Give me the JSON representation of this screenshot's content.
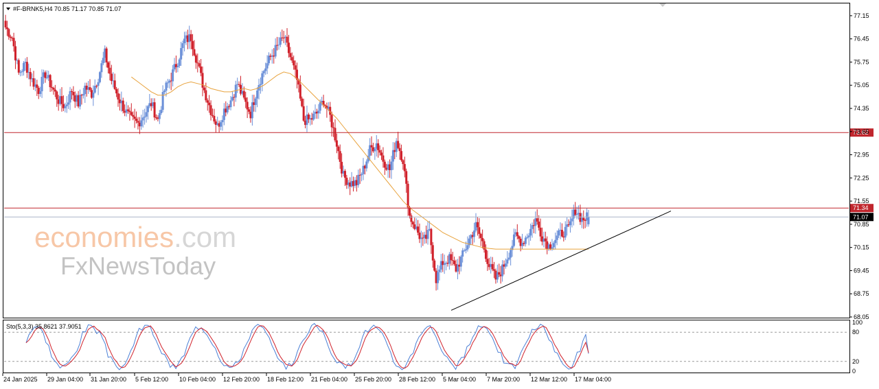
{
  "header": {
    "symbol_line": "#F-BRNK5,H4  70.85 71.17 70.85 71.07",
    "stoch_label": "Sto(5,3,3) 35.8621 37.9051"
  },
  "watermark": {
    "brand_main": "economies",
    "brand_suffix": ".com",
    "brand_second": "FxNewsToday"
  },
  "colors": {
    "bull": "#6a8fd8",
    "bear": "#d0202a",
    "ma": "#e8a23c",
    "level": "#c0262d",
    "trendline": "#000000",
    "price_line": "#aab4c8",
    "stoch_main": "#4a7fd6",
    "stoch_signal": "#d0202a"
  },
  "chart_data": [
    {
      "type": "candlestick",
      "symbol": "#F-BRNK5",
      "timeframe": "H4",
      "ohlc_last": {
        "open": 70.85,
        "high": 71.17,
        "low": 70.85,
        "close": 71.07
      },
      "ylim": [
        68.05,
        77.5
      ],
      "y_ticks": [
        77.15,
        76.45,
        75.75,
        75.05,
        74.35,
        73.65,
        72.95,
        72.25,
        71.55,
        70.85,
        70.15,
        69.45,
        68.75,
        68.05
      ],
      "x_tick_labels": [
        "24 Jan 2025",
        "29 Jan 04:00",
        "31 Jan 20:00",
        "5 Feb 12:00",
        "10 Feb 04:00",
        "12 Feb 20:00",
        "18 Feb 12:00",
        "21 Feb 04:00",
        "25 Feb 20:00",
        "28 Feb 12:00",
        "5 Mar 04:00",
        "7 Mar 20:00",
        "12 Mar 12:00",
        "17 Mar 04:00"
      ],
      "levels": [
        {
          "price": 73.62,
          "label": "73.62"
        },
        {
          "price": 71.34,
          "label": "71.34"
        }
      ],
      "current_price": {
        "price": 71.07,
        "label": "71.07"
      },
      "trendline": {
        "start_price": 68.25,
        "end_price": 71.25
      },
      "close_path": [
        76.8,
        76.5,
        75.4,
        75.7,
        75.2,
        74.9,
        75.4,
        75.0,
        74.6,
        74.4,
        74.9,
        74.5,
        75.0,
        74.8,
        75.3,
        76.0,
        75.2,
        74.7,
        74.3,
        74.0,
        73.9,
        74.2,
        74.5,
        74.0,
        74.9,
        75.3,
        75.8,
        76.4,
        76.5,
        75.7,
        74.9,
        74.3,
        73.8,
        74.3,
        74.6,
        75.1,
        74.6,
        74.2,
        75.0,
        75.5,
        75.9,
        76.2,
        76.5,
        75.9,
        75.2,
        74.0,
        74.0,
        74.2,
        74.6,
        74.1,
        73.3,
        72.3,
        72.1,
        72.1,
        72.5,
        73.1,
        73.3,
        72.8,
        72.5,
        73.4,
        72.8,
        71.1,
        70.7,
        70.3,
        70.6,
        69.2,
        69.7,
        69.8,
        69.5,
        69.9,
        70.4,
        70.8,
        70.3,
        69.6,
        69.2,
        69.5,
        70.0,
        70.5,
        70.3,
        70.6,
        71.0,
        70.5,
        70.2,
        70.4,
        70.6,
        70.7,
        71.3,
        71.0,
        71.07
      ],
      "ma_path": [
        null,
        null,
        null,
        null,
        null,
        null,
        null,
        null,
        null,
        null,
        null,
        null,
        null,
        null,
        null,
        null,
        null,
        null,
        null,
        75.3,
        75.15,
        75.0,
        74.85,
        74.75,
        74.75,
        74.85,
        75.0,
        75.1,
        75.15,
        75.1,
        75.05,
        74.95,
        74.9,
        74.85,
        74.85,
        74.9,
        74.95,
        74.9,
        74.95,
        75.05,
        75.2,
        75.35,
        75.45,
        75.4,
        75.25,
        75.05,
        74.85,
        74.65,
        74.45,
        74.25,
        74.05,
        73.8,
        73.55,
        73.3,
        73.05,
        72.8,
        72.55,
        72.3,
        72.05,
        71.8,
        71.55,
        71.35,
        71.2,
        71.05,
        70.9,
        70.75,
        70.6,
        70.5,
        70.4,
        70.3,
        70.25,
        70.2,
        70.15,
        70.12,
        70.1,
        70.1,
        70.1,
        70.1,
        70.1,
        70.1,
        70.1,
        70.1,
        70.1,
        70.1,
        70.1,
        70.1,
        70.1,
        70.1,
        70.1
      ],
      "stochastic": {
        "params": "5,3,3",
        "main": 35.8621,
        "signal": 37.9051,
        "levels": [
          80,
          20
        ],
        "scale_labels": [
          "100",
          "80",
          "20",
          "0"
        ]
      }
    }
  ]
}
